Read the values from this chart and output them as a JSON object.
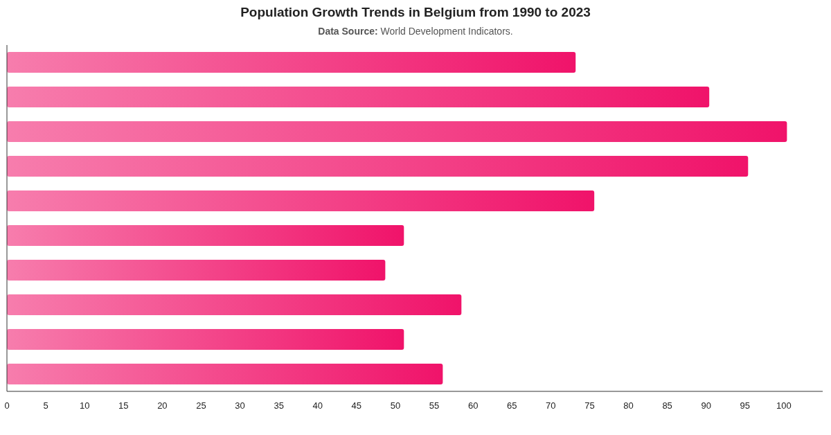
{
  "chart_data": {
    "type": "bar",
    "orientation": "horizontal",
    "title": "Population Growth Trends in Belgium from 1990 to 2023",
    "subtitle": "Data Source: World Development Indicators.",
    "categories": [
      null,
      null,
      null,
      null,
      null,
      null,
      null,
      null,
      null,
      null
    ],
    "values": [
      73.2,
      90.4,
      100.4,
      95.4,
      75.6,
      51.1,
      48.7,
      58.5,
      51.1,
      56.1
    ],
    "color": "#f0136a",
    "xlim": [
      0,
      105
    ],
    "xticks": [
      0,
      5,
      10,
      15,
      20,
      25,
      30,
      35,
      40,
      45,
      50,
      55,
      60,
      65,
      70,
      75,
      80,
      85,
      90,
      95,
      100
    ],
    "grid": false
  }
}
